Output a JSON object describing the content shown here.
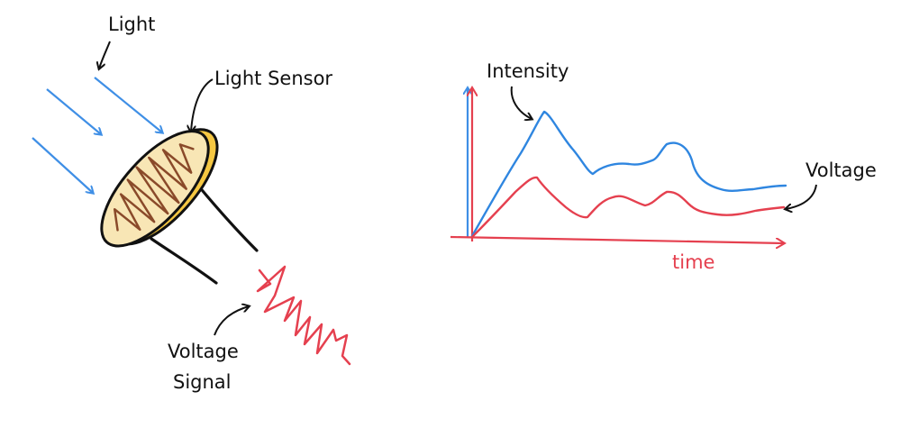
{
  "labels": {
    "light": "Light",
    "light_sensor": "Light Sensor",
    "voltage_signal_line1": "Voltage",
    "voltage_signal_line2": "Signal",
    "intensity": "Intensity",
    "voltage": "Voltage",
    "time": "time"
  },
  "colors": {
    "light_ray": "#3f8fe6",
    "intensity_curve": "#2f86e0",
    "voltage_curve": "#e5404f",
    "time_axis": "#e5404f",
    "y_axis_blue": "#3f8fe6",
    "y_axis_red": "#e5404f",
    "sensor_face": "#f8e6b5",
    "sensor_rim": "#f5c742",
    "sensor_trace": "#8a4a2a",
    "ink": "#111111"
  },
  "icons": {
    "light_ray": "arrow-ray-icon",
    "sensor": "photoresistor-icon",
    "signal": "zigzag-signal-icon"
  }
}
